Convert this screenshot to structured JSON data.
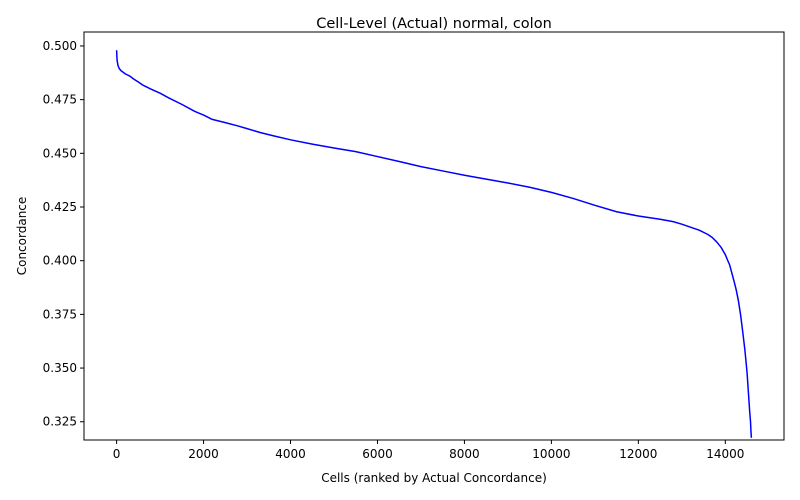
{
  "chart_data": {
    "type": "line",
    "title": "Cell-Level (Actual) normal, colon",
    "xlabel": "Cells (ranked by Actual Concordance)",
    "ylabel": "Concordance",
    "xlim": [
      -750,
      15350
    ],
    "ylim": [
      0.3165,
      0.5065
    ],
    "xticks": [
      0,
      2000,
      4000,
      6000,
      8000,
      10000,
      12000,
      14000
    ],
    "yticks": [
      0.325,
      0.35,
      0.375,
      0.4,
      0.425,
      0.45,
      0.475,
      0.5
    ],
    "xtick_labels": [
      "0",
      "2000",
      "4000",
      "6000",
      "8000",
      "10000",
      "12000",
      "14000"
    ],
    "ytick_labels": [
      "0.325",
      "0.350",
      "0.375",
      "0.400",
      "0.425",
      "0.450",
      "0.475",
      "0.500"
    ],
    "grid": false,
    "series": [
      {
        "color": "#0000ff",
        "x": [
          0,
          10,
          30,
          60,
          100,
          200,
          300,
          400,
          500,
          600,
          800,
          1000,
          1200,
          1500,
          1800,
          2000,
          2200,
          2500,
          2800,
          3000,
          3300,
          3600,
          4000,
          4500,
          5000,
          5500,
          6000,
          6500,
          7000,
          7500,
          8000,
          8500,
          9000,
          9500,
          10000,
          10500,
          11000,
          11500,
          12000,
          12500,
          12800,
          13000,
          13200,
          13400,
          13600,
          13700,
          13800,
          13900,
          14000,
          14100,
          14200,
          14250,
          14300,
          14350,
          14400,
          14450,
          14500,
          14530,
          14560,
          14580,
          14590,
          14600
        ],
        "y": [
          0.498,
          0.4935,
          0.491,
          0.4895,
          0.4885,
          0.487,
          0.486,
          0.4845,
          0.4832,
          0.4818,
          0.4798,
          0.478,
          0.4758,
          0.4728,
          0.4695,
          0.4678,
          0.4658,
          0.4643,
          0.4627,
          0.4615,
          0.4597,
          0.4582,
          0.4563,
          0.4543,
          0.4525,
          0.4508,
          0.4485,
          0.4462,
          0.4438,
          0.4418,
          0.4398,
          0.438,
          0.4362,
          0.4342,
          0.4318,
          0.429,
          0.4258,
          0.4228,
          0.4208,
          0.4193,
          0.4182,
          0.417,
          0.4156,
          0.4142,
          0.4122,
          0.4108,
          0.4088,
          0.4063,
          0.4028,
          0.398,
          0.3905,
          0.3865,
          0.3815,
          0.375,
          0.367,
          0.3585,
          0.348,
          0.339,
          0.33,
          0.325,
          0.3205,
          0.3175
        ]
      }
    ]
  }
}
